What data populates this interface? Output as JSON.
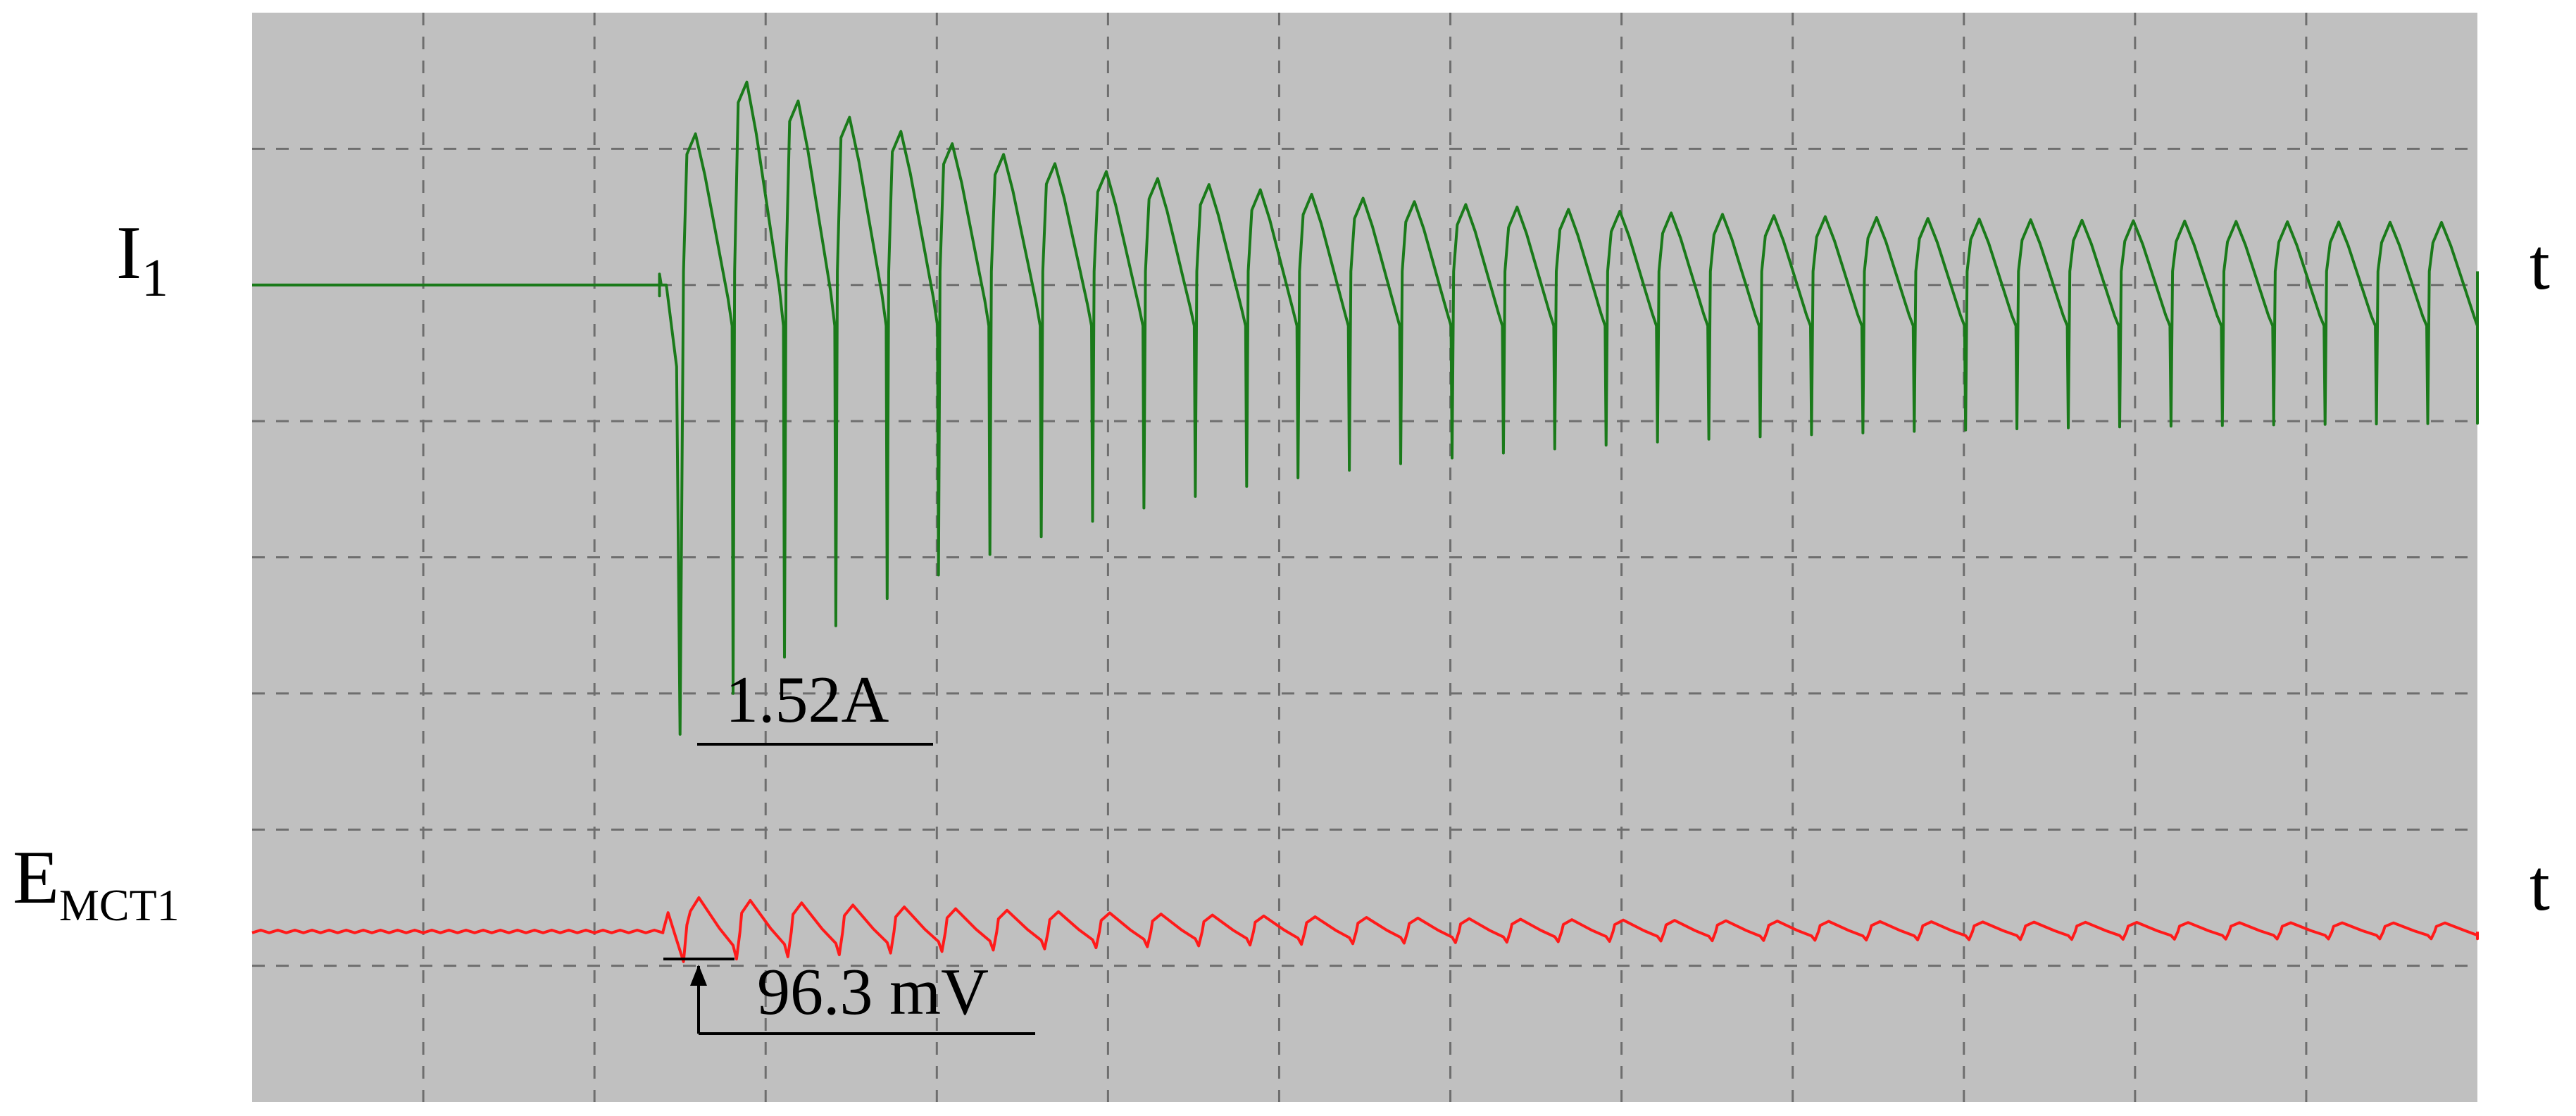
{
  "colors": {
    "background": "#ffffff",
    "screen": "#c0c0c0",
    "grid": "#6e6e6e",
    "trace_current": "#1a7a1a",
    "trace_emf": "#ff1a1a",
    "text": "#000000"
  },
  "chart_data": {
    "type": "line",
    "title": "",
    "grid": true,
    "grid_divisions": {
      "x": 13,
      "y": 8
    },
    "channels": [
      {
        "name": "I",
        "name_subscript": "1",
        "axis_label": "t",
        "color": "#1a7a1a",
        "units": "divisions",
        "baseline_div": 6.0,
        "transient_start_div": 2.4,
        "ripple_period_div": 0.3,
        "first_pulse_min_div": 2.7,
        "final_pulse_peak_div": 6.45,
        "final_pulse_min_div": 5.0,
        "annotation": "1.52A"
      },
      {
        "name": "E",
        "name_subscript": "MCT1",
        "axis_label": "t",
        "color": "#ff1a1a",
        "units": "divisions",
        "baseline_div": 1.25,
        "transient_start_div": 2.4,
        "ripple_period_div": 0.3,
        "initial_ripple_amplitude_div": 0.25,
        "final_ripple_amplitude_div": 0.06,
        "annotation": "96.3 mV"
      }
    ]
  }
}
